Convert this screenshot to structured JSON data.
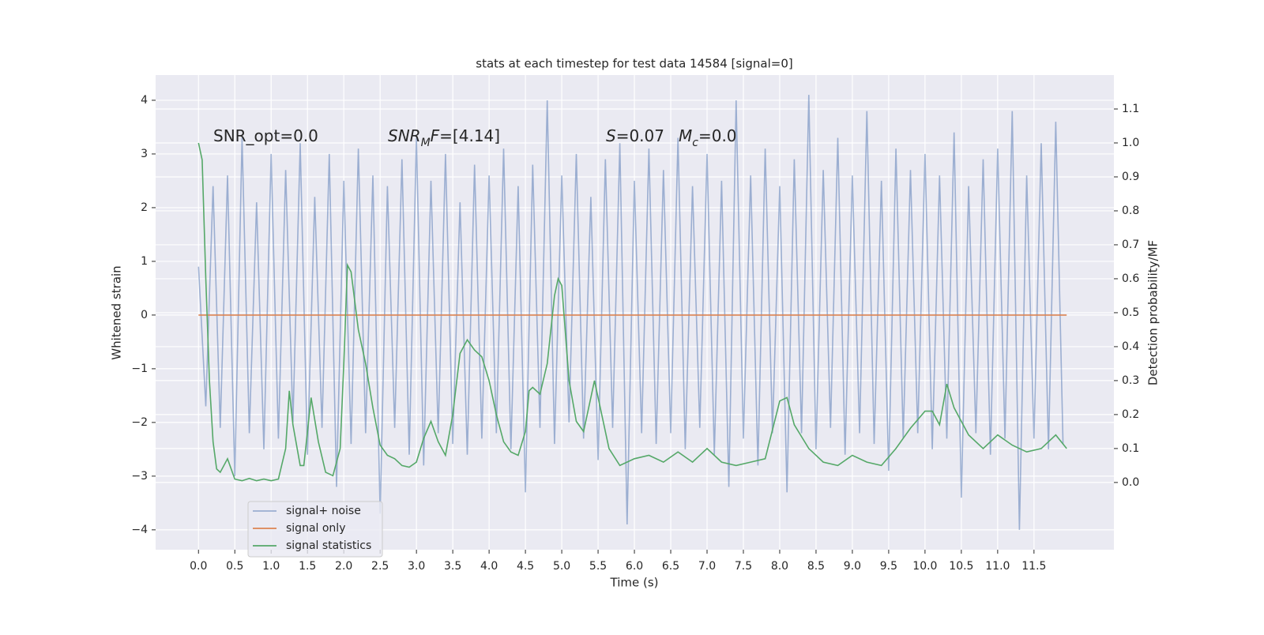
{
  "chart_data": {
    "type": "line",
    "title": "stats at each timestep for test data 14584 [signal=0]",
    "xlabel": "Time (s)",
    "ylabel": "Whitened strain",
    "y2label": "Detection probability/MF",
    "xlim": [
      -0.59,
      12.6
    ],
    "ylim": [
      -4.37,
      4.47
    ],
    "y2lim": [
      -0.198,
      1.2
    ],
    "xticks": [
      {
        "value": 0,
        "label": "0.0"
      },
      0.5,
      {
        "value": 1,
        "label": "1.0"
      },
      1.5,
      {
        "value": 2,
        "label": "2.0"
      },
      2.5,
      {
        "value": 3,
        "label": "3.0"
      },
      3.5,
      {
        "value": 4,
        "label": "4.0"
      },
      4.5,
      {
        "value": 5,
        "label": "5.0"
      },
      5.5,
      {
        "value": 6,
        "label": "6.0"
      },
      6.5,
      {
        "value": 7,
        "label": "7.0"
      },
      7.5,
      {
        "value": 8,
        "label": "8.0"
      },
      8.5,
      {
        "value": 9,
        "label": "9.0"
      },
      9.5,
      {
        "value": 10,
        "label": "10.0"
      },
      10.5,
      {
        "value": 11,
        "label": "11.0"
      },
      11.5
    ],
    "yticks": [
      {
        "value": -4,
        "label": "−4"
      },
      {
        "value": -3,
        "label": "−3"
      },
      {
        "value": -2,
        "label": "−2"
      },
      {
        "value": -1,
        "label": "−1"
      },
      0,
      1,
      2,
      3,
      4
    ],
    "y2ticks": [
      {
        "value": 0,
        "label": "0.0"
      },
      0.1,
      0.2,
      0.3,
      0.4,
      0.5,
      0.6,
      0.7,
      0.8,
      0.9,
      {
        "value": 1,
        "label": "1.0"
      },
      1.1
    ],
    "grid": true,
    "annotations": [
      {
        "parts": [
          {
            "text": "SNR_opt=0.0"
          }
        ]
      },
      {
        "parts": [
          {
            "text": "SNR",
            "italic": true
          },
          {
            "text": "M",
            "italic": true,
            "sub": true
          },
          {
            "text": "F",
            "italic": true
          },
          {
            "text": "=[4.14]"
          }
        ]
      },
      {
        "parts": [
          {
            "text": "S",
            "italic": true
          },
          {
            "text": "=0.07"
          }
        ]
      },
      {
        "parts": [
          {
            "text": "M",
            "italic": true
          },
          {
            "text": "c",
            "italic": true,
            "sub": true
          },
          {
            "text": "=0.0"
          }
        ]
      }
    ],
    "series": [
      {
        "name": "signal+ noise",
        "color": "#4c72b0",
        "alpha": 0.5,
        "x": [
          0.0,
          0.1,
          0.2,
          0.3,
          0.4,
          0.5,
          0.6,
          0.7,
          0.8,
          0.9,
          1.0,
          1.1,
          1.2,
          1.3,
          1.4,
          1.5,
          1.6,
          1.7,
          1.8,
          1.9,
          2.0,
          2.1,
          2.2,
          2.3,
          2.4,
          2.5,
          2.6,
          2.7,
          2.8,
          2.9,
          3.0,
          3.1,
          3.2,
          3.3,
          3.4,
          3.5,
          3.6,
          3.7,
          3.8,
          3.9,
          4.0,
          4.1,
          4.2,
          4.3,
          4.4,
          4.5,
          4.6,
          4.7,
          4.8,
          4.9,
          5.0,
          5.1,
          5.2,
          5.3,
          5.4,
          5.5,
          5.6,
          5.7,
          5.8,
          5.9,
          6.0,
          6.1,
          6.2,
          6.3,
          6.4,
          6.5,
          6.6,
          6.7,
          6.8,
          6.9,
          7.0,
          7.1,
          7.2,
          7.3,
          7.4,
          7.5,
          7.6,
          7.7,
          7.8,
          7.9,
          8.0,
          8.1,
          8.2,
          8.3,
          8.4,
          8.5,
          8.6,
          8.7,
          8.8,
          8.9,
          9.0,
          9.1,
          9.2,
          9.3,
          9.4,
          9.5,
          9.6,
          9.7,
          9.8,
          9.9,
          10.0,
          10.1,
          10.2,
          10.3,
          10.4,
          10.5,
          10.6,
          10.7,
          10.8,
          10.9,
          11.0,
          11.1,
          11.2,
          11.3,
          11.4,
          11.5,
          11.6,
          11.7,
          11.8,
          11.9
        ],
        "values": [
          0.9,
          -1.7,
          2.4,
          -2.1,
          2.6,
          -3.0,
          3.3,
          -2.2,
          2.1,
          -2.5,
          3.0,
          -2.3,
          2.7,
          -2.0,
          3.2,
          -2.6,
          2.2,
          -2.1,
          3.0,
          -3.2,
          2.5,
          -2.4,
          3.1,
          -2.2,
          2.6,
          -3.7,
          2.4,
          -2.1,
          2.9,
          -2.6,
          3.3,
          -2.8,
          2.5,
          -2.2,
          3.0,
          -2.4,
          2.1,
          -2.6,
          2.8,
          -2.3,
          2.6,
          -2.2,
          3.1,
          -2.5,
          2.4,
          -3.3,
          2.8,
          -2.1,
          4.0,
          -2.4,
          2.6,
          -2.0,
          3.0,
          -2.3,
          2.2,
          -2.7,
          2.9,
          -2.1,
          3.2,
          -3.9,
          2.5,
          -2.2,
          3.1,
          -2.4,
          2.7,
          -2.2,
          3.3,
          -2.5,
          2.4,
          -2.1,
          3.0,
          -2.6,
          2.5,
          -3.2,
          4.0,
          -2.3,
          2.6,
          -2.8,
          3.1,
          -2.2,
          2.4,
          -3.3,
          2.9,
          -2.2,
          4.1,
          -2.5,
          2.7,
          -2.1,
          3.3,
          -2.6,
          2.6,
          -2.2,
          3.8,
          -2.4,
          2.5,
          -2.9,
          3.1,
          -2.3,
          2.7,
          -2.2,
          3.0,
          -2.5,
          2.6,
          -2.3,
          3.4,
          -3.4,
          2.4,
          -2.2,
          2.9,
          -2.6,
          3.1,
          -2.3,
          3.8,
          -4.0,
          2.6,
          -2.3,
          3.2,
          -2.5,
          3.6,
          -2.4
        ]
      },
      {
        "name": "signal only",
        "color": "#dd8452",
        "alpha": 1,
        "x": [
          0.0,
          11.95
        ],
        "values": [
          0,
          0
        ]
      },
      {
        "name": "signal statistics",
        "color": "#55a868",
        "alpha": 1,
        "axis": "y2",
        "x": [
          0.0,
          0.05,
          0.1,
          0.15,
          0.2,
          0.25,
          0.3,
          0.4,
          0.5,
          0.6,
          0.7,
          0.8,
          0.9,
          1.0,
          1.1,
          1.2,
          1.25,
          1.3,
          1.4,
          1.45,
          1.55,
          1.65,
          1.75,
          1.85,
          1.95,
          2.0,
          2.05,
          2.1,
          2.2,
          2.3,
          2.4,
          2.5,
          2.6,
          2.7,
          2.8,
          2.9,
          3.0,
          3.1,
          3.2,
          3.3,
          3.4,
          3.5,
          3.6,
          3.7,
          3.8,
          3.9,
          4.0,
          4.1,
          4.2,
          4.3,
          4.4,
          4.5,
          4.55,
          4.6,
          4.7,
          4.8,
          4.9,
          4.95,
          5.0,
          5.1,
          5.2,
          5.3,
          5.45,
          5.55,
          5.65,
          5.8,
          6.0,
          6.2,
          6.4,
          6.6,
          6.8,
          7.0,
          7.2,
          7.4,
          7.6,
          7.8,
          8.0,
          8.1,
          8.2,
          8.4,
          8.6,
          8.8,
          9.0,
          9.2,
          9.4,
          9.6,
          9.8,
          10.0,
          10.1,
          10.2,
          10.3,
          10.4,
          10.6,
          10.8,
          11.0,
          11.2,
          11.4,
          11.6,
          11.8,
          11.95
        ],
        "values": [
          1.0,
          0.95,
          0.6,
          0.3,
          0.12,
          0.04,
          0.03,
          0.07,
          0.01,
          0.005,
          0.012,
          0.005,
          0.01,
          0.005,
          0.01,
          0.1,
          0.27,
          0.17,
          0.05,
          0.05,
          0.25,
          0.12,
          0.03,
          0.02,
          0.1,
          0.35,
          0.64,
          0.62,
          0.45,
          0.35,
          0.22,
          0.11,
          0.08,
          0.07,
          0.05,
          0.045,
          0.06,
          0.13,
          0.18,
          0.12,
          0.08,
          0.2,
          0.38,
          0.42,
          0.39,
          0.37,
          0.3,
          0.2,
          0.12,
          0.09,
          0.08,
          0.15,
          0.27,
          0.28,
          0.26,
          0.35,
          0.55,
          0.6,
          0.58,
          0.3,
          0.18,
          0.15,
          0.3,
          0.2,
          0.1,
          0.05,
          0.07,
          0.08,
          0.06,
          0.09,
          0.06,
          0.1,
          0.06,
          0.05,
          0.06,
          0.07,
          0.24,
          0.25,
          0.17,
          0.1,
          0.06,
          0.05,
          0.08,
          0.06,
          0.05,
          0.1,
          0.16,
          0.21,
          0.21,
          0.17,
          0.29,
          0.22,
          0.14,
          0.1,
          0.14,
          0.11,
          0.09,
          0.1,
          0.14,
          0.1
        ]
      }
    ]
  }
}
